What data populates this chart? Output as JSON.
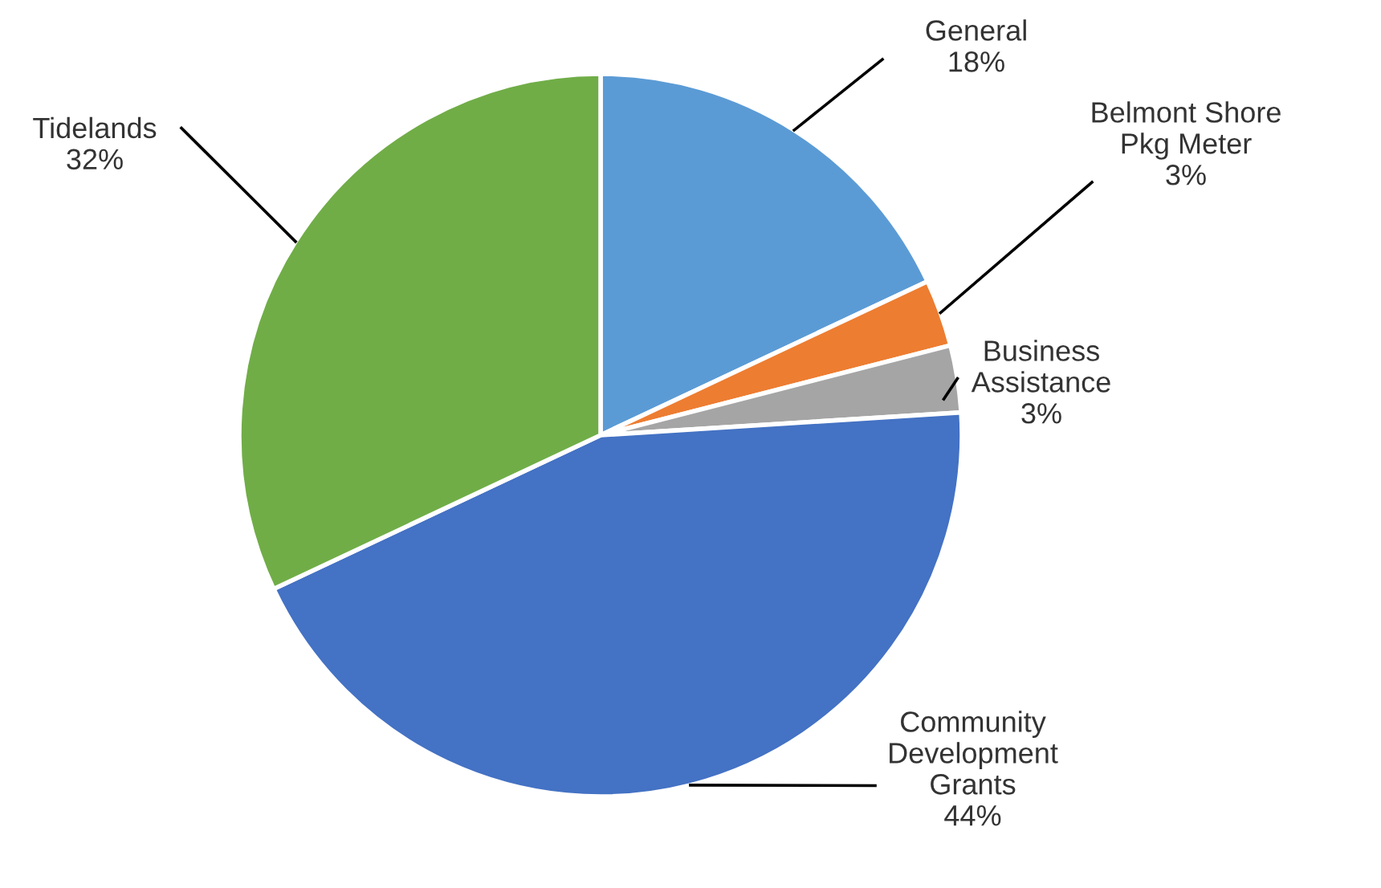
{
  "chart_data": {
    "type": "pie",
    "categories": [
      "General",
      "Belmont Shore\nPkg Meter",
      "Business\nAssistance",
      "Community\nDevelopment\nGrants",
      "Tidelands"
    ],
    "values": [
      18,
      3,
      3,
      44,
      32
    ],
    "value_labels": [
      "18%",
      "3%",
      "3%",
      "44%",
      "32%"
    ],
    "colors": [
      "#5b9bd5",
      "#ed7d31",
      "#a5a5a5",
      "#4472c4",
      "#70ad47"
    ],
    "legend": false
  }
}
